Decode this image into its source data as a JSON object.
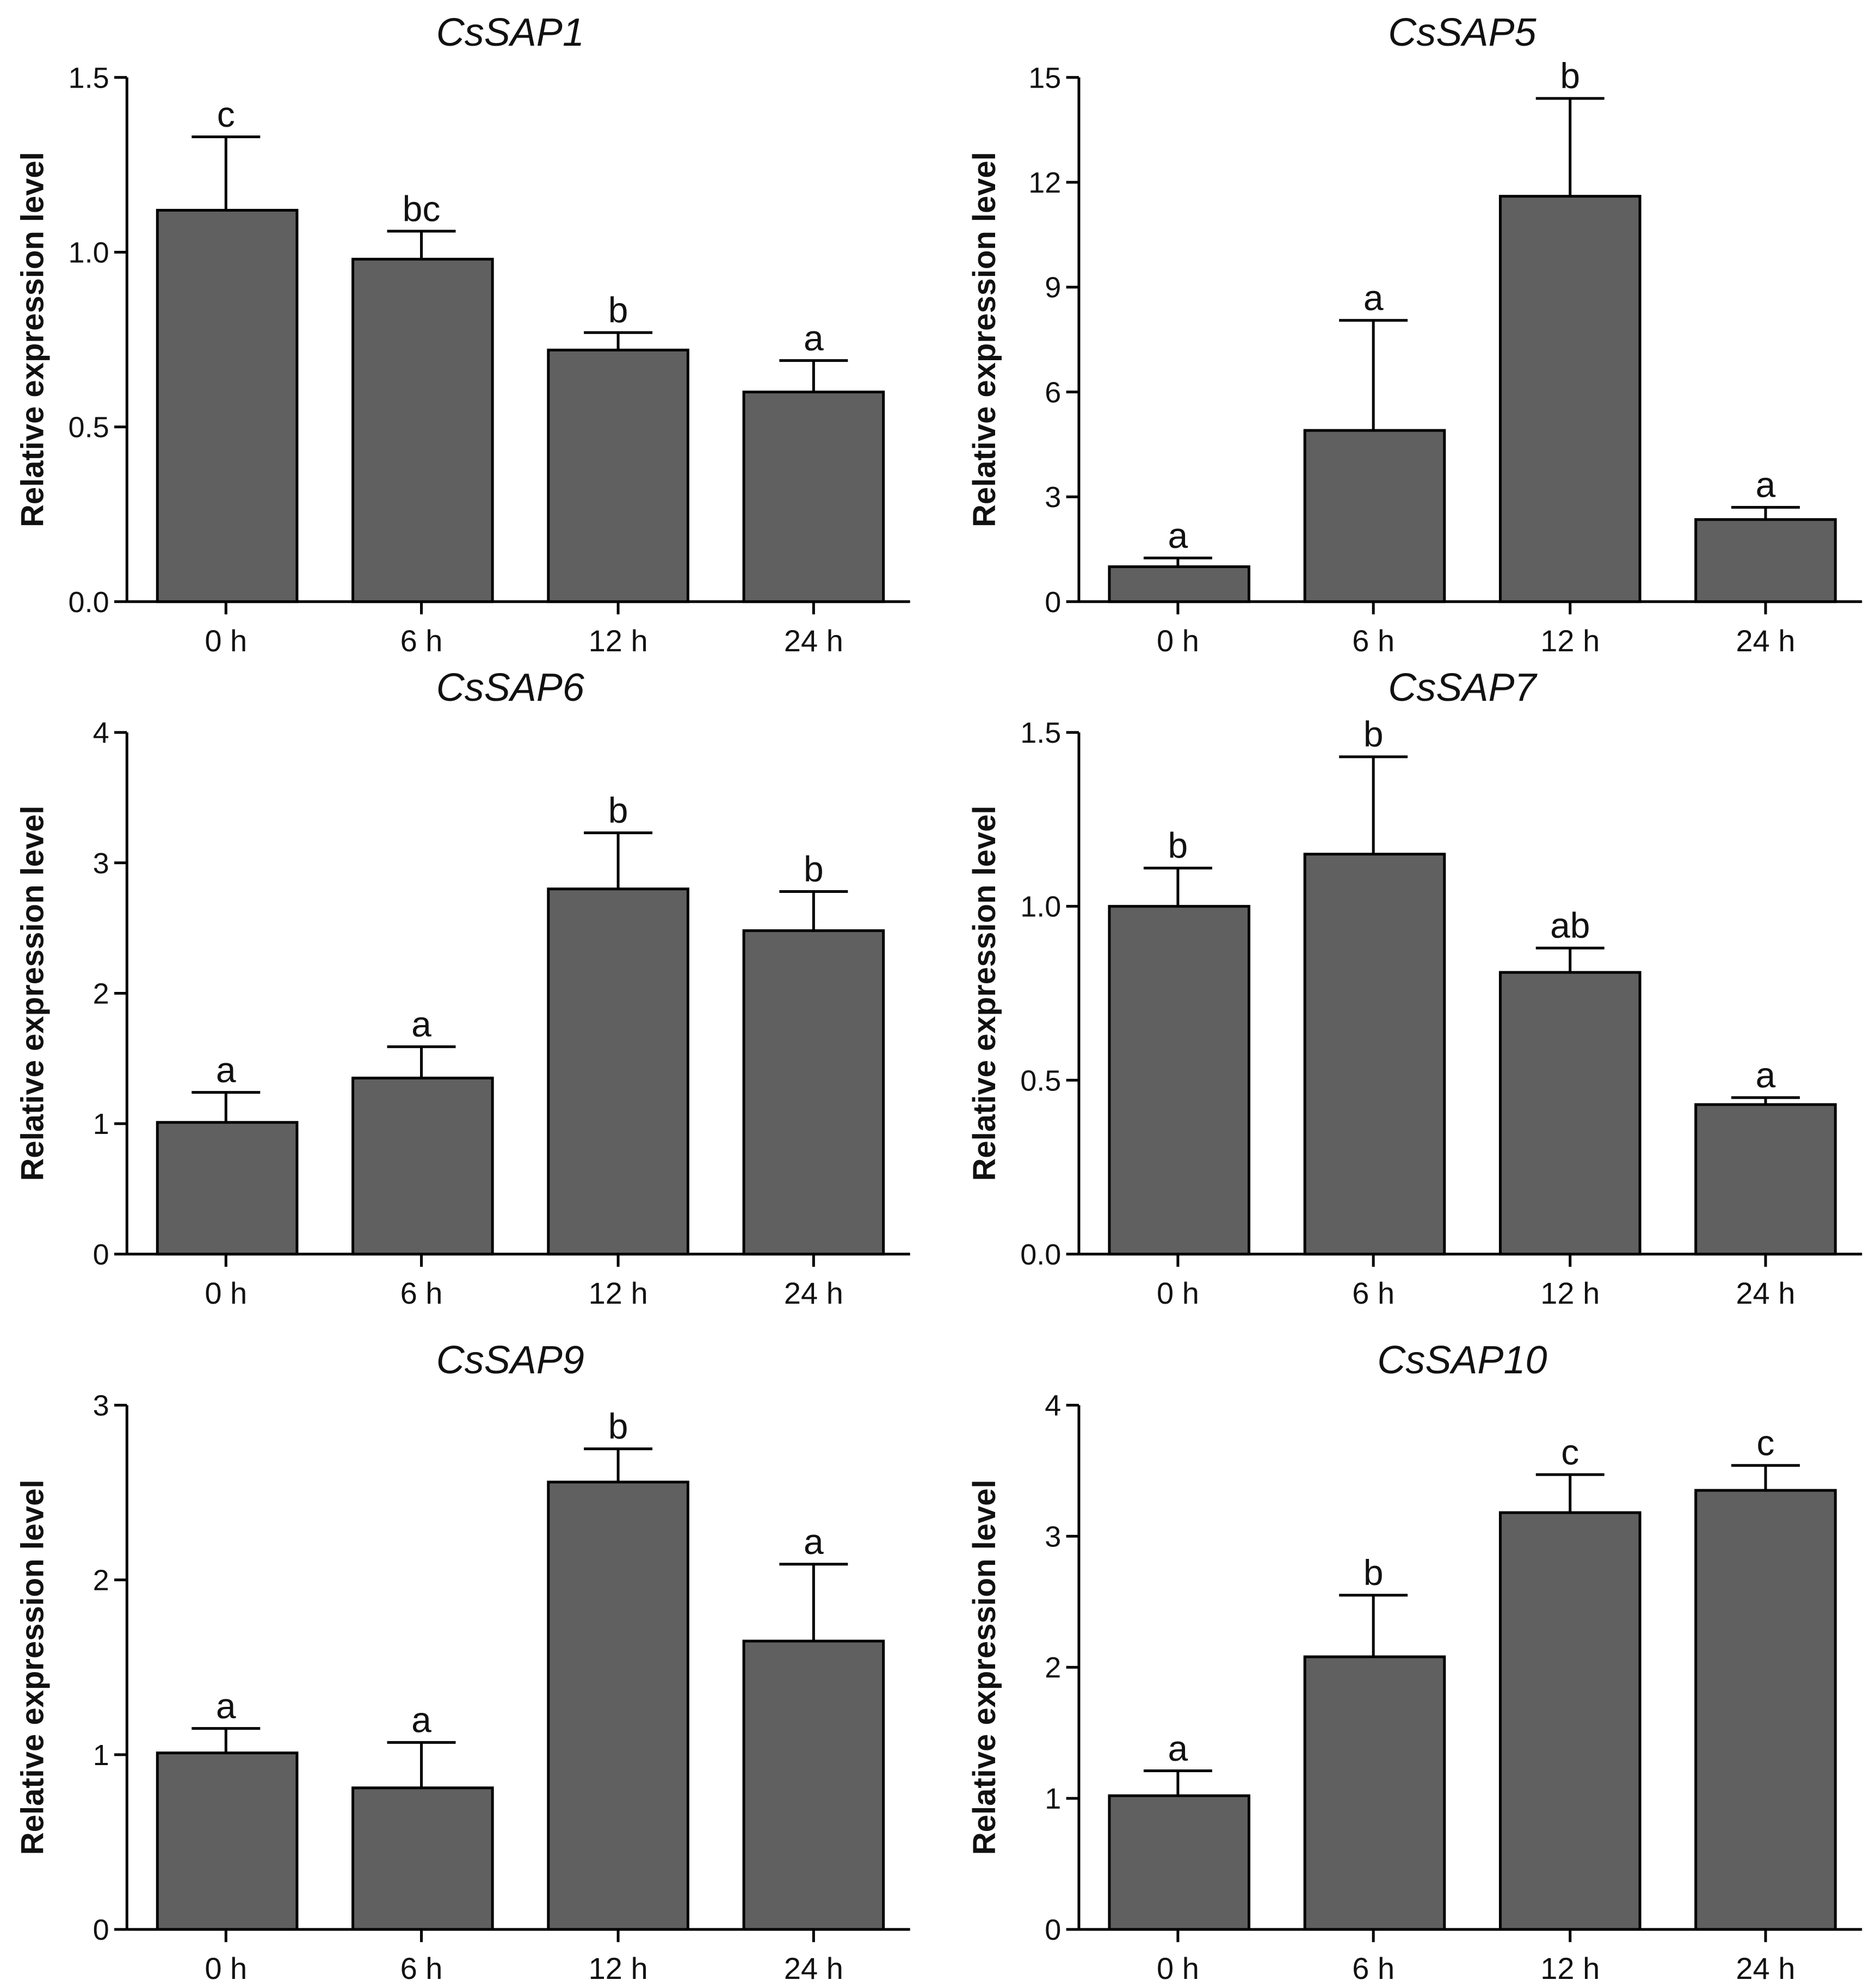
{
  "chart_data": [
    {
      "type": "bar",
      "title": "CsSAP1",
      "ylabel": "Relative expression level",
      "categories": [
        "0 h",
        "6 h",
        "12 h",
        "24 h"
      ],
      "values": [
        1.12,
        0.98,
        0.72,
        0.6
      ],
      "errors": [
        0.21,
        0.08,
        0.05,
        0.09
      ],
      "letters": [
        "c",
        "bc",
        "b",
        "a"
      ],
      "ylim": [
        0,
        1.5
      ],
      "yticks": [
        0.0,
        0.5,
        1.0,
        1.5
      ],
      "ytick_labels": [
        "0.0",
        "0.5",
        "1.0",
        "1.5"
      ]
    },
    {
      "type": "bar",
      "title": "CsSAP5",
      "ylabel": "Relative expression level",
      "categories": [
        "0 h",
        "6 h",
        "12 h",
        "24 h"
      ],
      "values": [
        1.0,
        4.9,
        11.6,
        2.35
      ],
      "errors": [
        0.25,
        3.15,
        2.8,
        0.35
      ],
      "letters": [
        "a",
        "a",
        "b",
        "a"
      ],
      "ylim": [
        0,
        15
      ],
      "yticks": [
        0,
        3,
        6,
        9,
        12,
        15
      ],
      "ytick_labels": [
        "0",
        "3",
        "6",
        "9",
        "12",
        "15"
      ]
    },
    {
      "type": "bar",
      "title": "CsSAP6",
      "ylabel": "Relative expression level",
      "categories": [
        "0 h",
        "6 h",
        "12 h",
        "24 h"
      ],
      "values": [
        1.01,
        1.35,
        2.8,
        2.48
      ],
      "errors": [
        0.23,
        0.24,
        0.43,
        0.3
      ],
      "letters": [
        "a",
        "a",
        "b",
        "b"
      ],
      "ylim": [
        0,
        4
      ],
      "yticks": [
        0,
        1,
        2,
        3,
        4
      ],
      "ytick_labels": [
        "0",
        "1",
        "2",
        "3",
        "4"
      ]
    },
    {
      "type": "bar",
      "title": "CsSAP7",
      "ylabel": "Relative expression level",
      "categories": [
        "0 h",
        "6 h",
        "12 h",
        "24 h"
      ],
      "values": [
        1.0,
        1.15,
        0.81,
        0.43
      ],
      "errors": [
        0.11,
        0.28,
        0.07,
        0.02
      ],
      "letters": [
        "b",
        "b",
        "ab",
        "a"
      ],
      "ylim": [
        0,
        1.5
      ],
      "yticks": [
        0.0,
        0.5,
        1.0,
        1.5
      ],
      "ytick_labels": [
        "0.0",
        "0.5",
        "1.0",
        "1.5"
      ]
    },
    {
      "type": "bar",
      "title": "CsSAP9",
      "ylabel": "Relative expression level",
      "categories": [
        "0 h",
        "6 h",
        "12 h",
        "24 h"
      ],
      "values": [
        1.01,
        0.81,
        2.56,
        1.65
      ],
      "errors": [
        0.14,
        0.26,
        0.19,
        0.44
      ],
      "letters": [
        "a",
        "a",
        "b",
        "a"
      ],
      "ylim": [
        0,
        3
      ],
      "yticks": [
        0,
        1,
        2,
        3
      ],
      "ytick_labels": [
        "0",
        "1",
        "2",
        "3"
      ]
    },
    {
      "type": "bar",
      "title": "CsSAP10",
      "ylabel": "Relative expression level",
      "categories": [
        "0 h",
        "6 h",
        "12 h",
        "24 h"
      ],
      "values": [
        1.02,
        2.08,
        3.18,
        3.35
      ],
      "errors": [
        0.19,
        0.47,
        0.29,
        0.19
      ],
      "letters": [
        "a",
        "b",
        "c",
        "c"
      ],
      "ylim": [
        0,
        4
      ],
      "yticks": [
        0,
        1,
        2,
        3,
        4
      ],
      "ytick_labels": [
        "0",
        "1",
        "2",
        "3",
        "4"
      ]
    }
  ]
}
